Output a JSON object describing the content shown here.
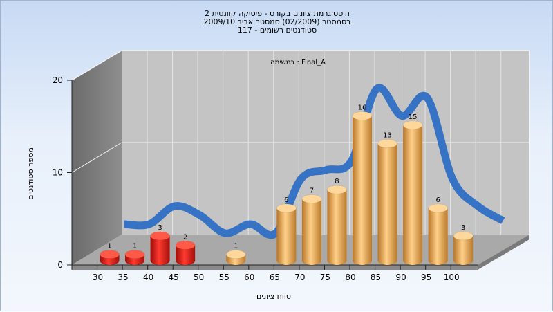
{
  "chart_data": {
    "type": "bar",
    "title_lines": [
      "היסטוגרמת ציונים בקורס - פיסיקה קוונטית 2",
      "בסמסטר  (02/2009)  סמסטר אביב 2009/10",
      "סטודנטים רשומים - 117"
    ],
    "annotation": "במשימה : Final_A",
    "xlabel": "טווח ציונים",
    "ylabel": "מספר סטודנטים",
    "categories": [
      "30",
      "35",
      "40",
      "45",
      "50",
      "55",
      "60",
      "65",
      "70",
      "75",
      "80",
      "85",
      "90",
      "95",
      "100"
    ],
    "values": [
      1,
      1,
      3,
      2,
      null,
      1,
      null,
      6,
      7,
      8,
      16,
      13,
      15,
      6,
      3
    ],
    "bar_colors": [
      "#d61a14",
      "#d61a14",
      "#d61a14",
      "#d61a14",
      null,
      "#e8a64a",
      null,
      "#e8a64a",
      "#e8a64a",
      "#e8a64a",
      "#e8a64a",
      "#e8a64a",
      "#e8a64a",
      "#e8a64a",
      "#e8a64a"
    ],
    "y_ticks": [
      0,
      10,
      20
    ],
    "ylim": [
      0,
      20
    ],
    "grid": true,
    "trend_line_color": "#2f6fc4"
  }
}
